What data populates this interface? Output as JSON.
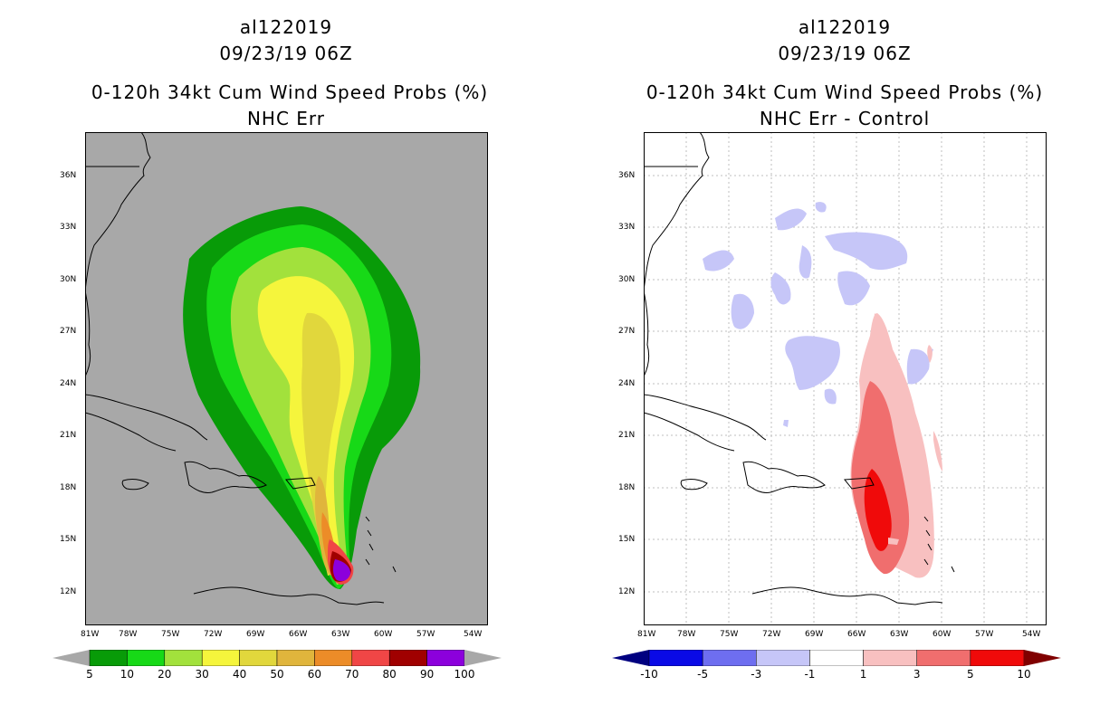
{
  "left_panel": {
    "storm_id": "al122019",
    "datetime": "09/23/19 06Z",
    "product": "0-120h 34kt Cum Wind Speed Probs (%)",
    "subtitle": "NHC Err",
    "colorbar": {
      "labels": [
        "5",
        "10",
        "20",
        "30",
        "40",
        "50",
        "60",
        "70",
        "80",
        "90",
        "100"
      ],
      "colors": [
        "#089b08",
        "#17d917",
        "#a2e13c",
        "#f5f53c",
        "#e1d73c",
        "#e0b53c",
        "#ec8c28",
        "#f04646",
        "#a00000",
        "#8c00dc"
      ],
      "arrow_color": "#a8a8a8"
    }
  },
  "right_panel": {
    "storm_id": "al122019",
    "datetime": "09/23/19 06Z",
    "product": "0-120h 34kt Cum Wind Speed Probs (%)",
    "subtitle": "NHC Err - Control",
    "colorbar": {
      "labels": [
        "-10",
        "-5",
        "-3",
        "-1",
        "1",
        "3",
        "5",
        "10"
      ],
      "colors": [
        "#0a0ae6",
        "#6e6ef0",
        "#c6c6f8",
        "#ffffff",
        "#f8c0c0",
        "#f06e6e",
        "#f00a0a"
      ],
      "left_arrow_color": "#000080",
      "right_arrow_color": "#800000"
    }
  },
  "map_axes": {
    "lon_ticks": [
      "81W",
      "78W",
      "75W",
      "72W",
      "69W",
      "66W",
      "63W",
      "60W",
      "57W",
      "54W"
    ],
    "lat_ticks": [
      "36N",
      "33N",
      "30N",
      "27N",
      "24N",
      "21N",
      "18N",
      "15N",
      "12N"
    ]
  },
  "colors": {
    "land_bg": "#a8a8a8",
    "grid": "#bfbfbf"
  }
}
